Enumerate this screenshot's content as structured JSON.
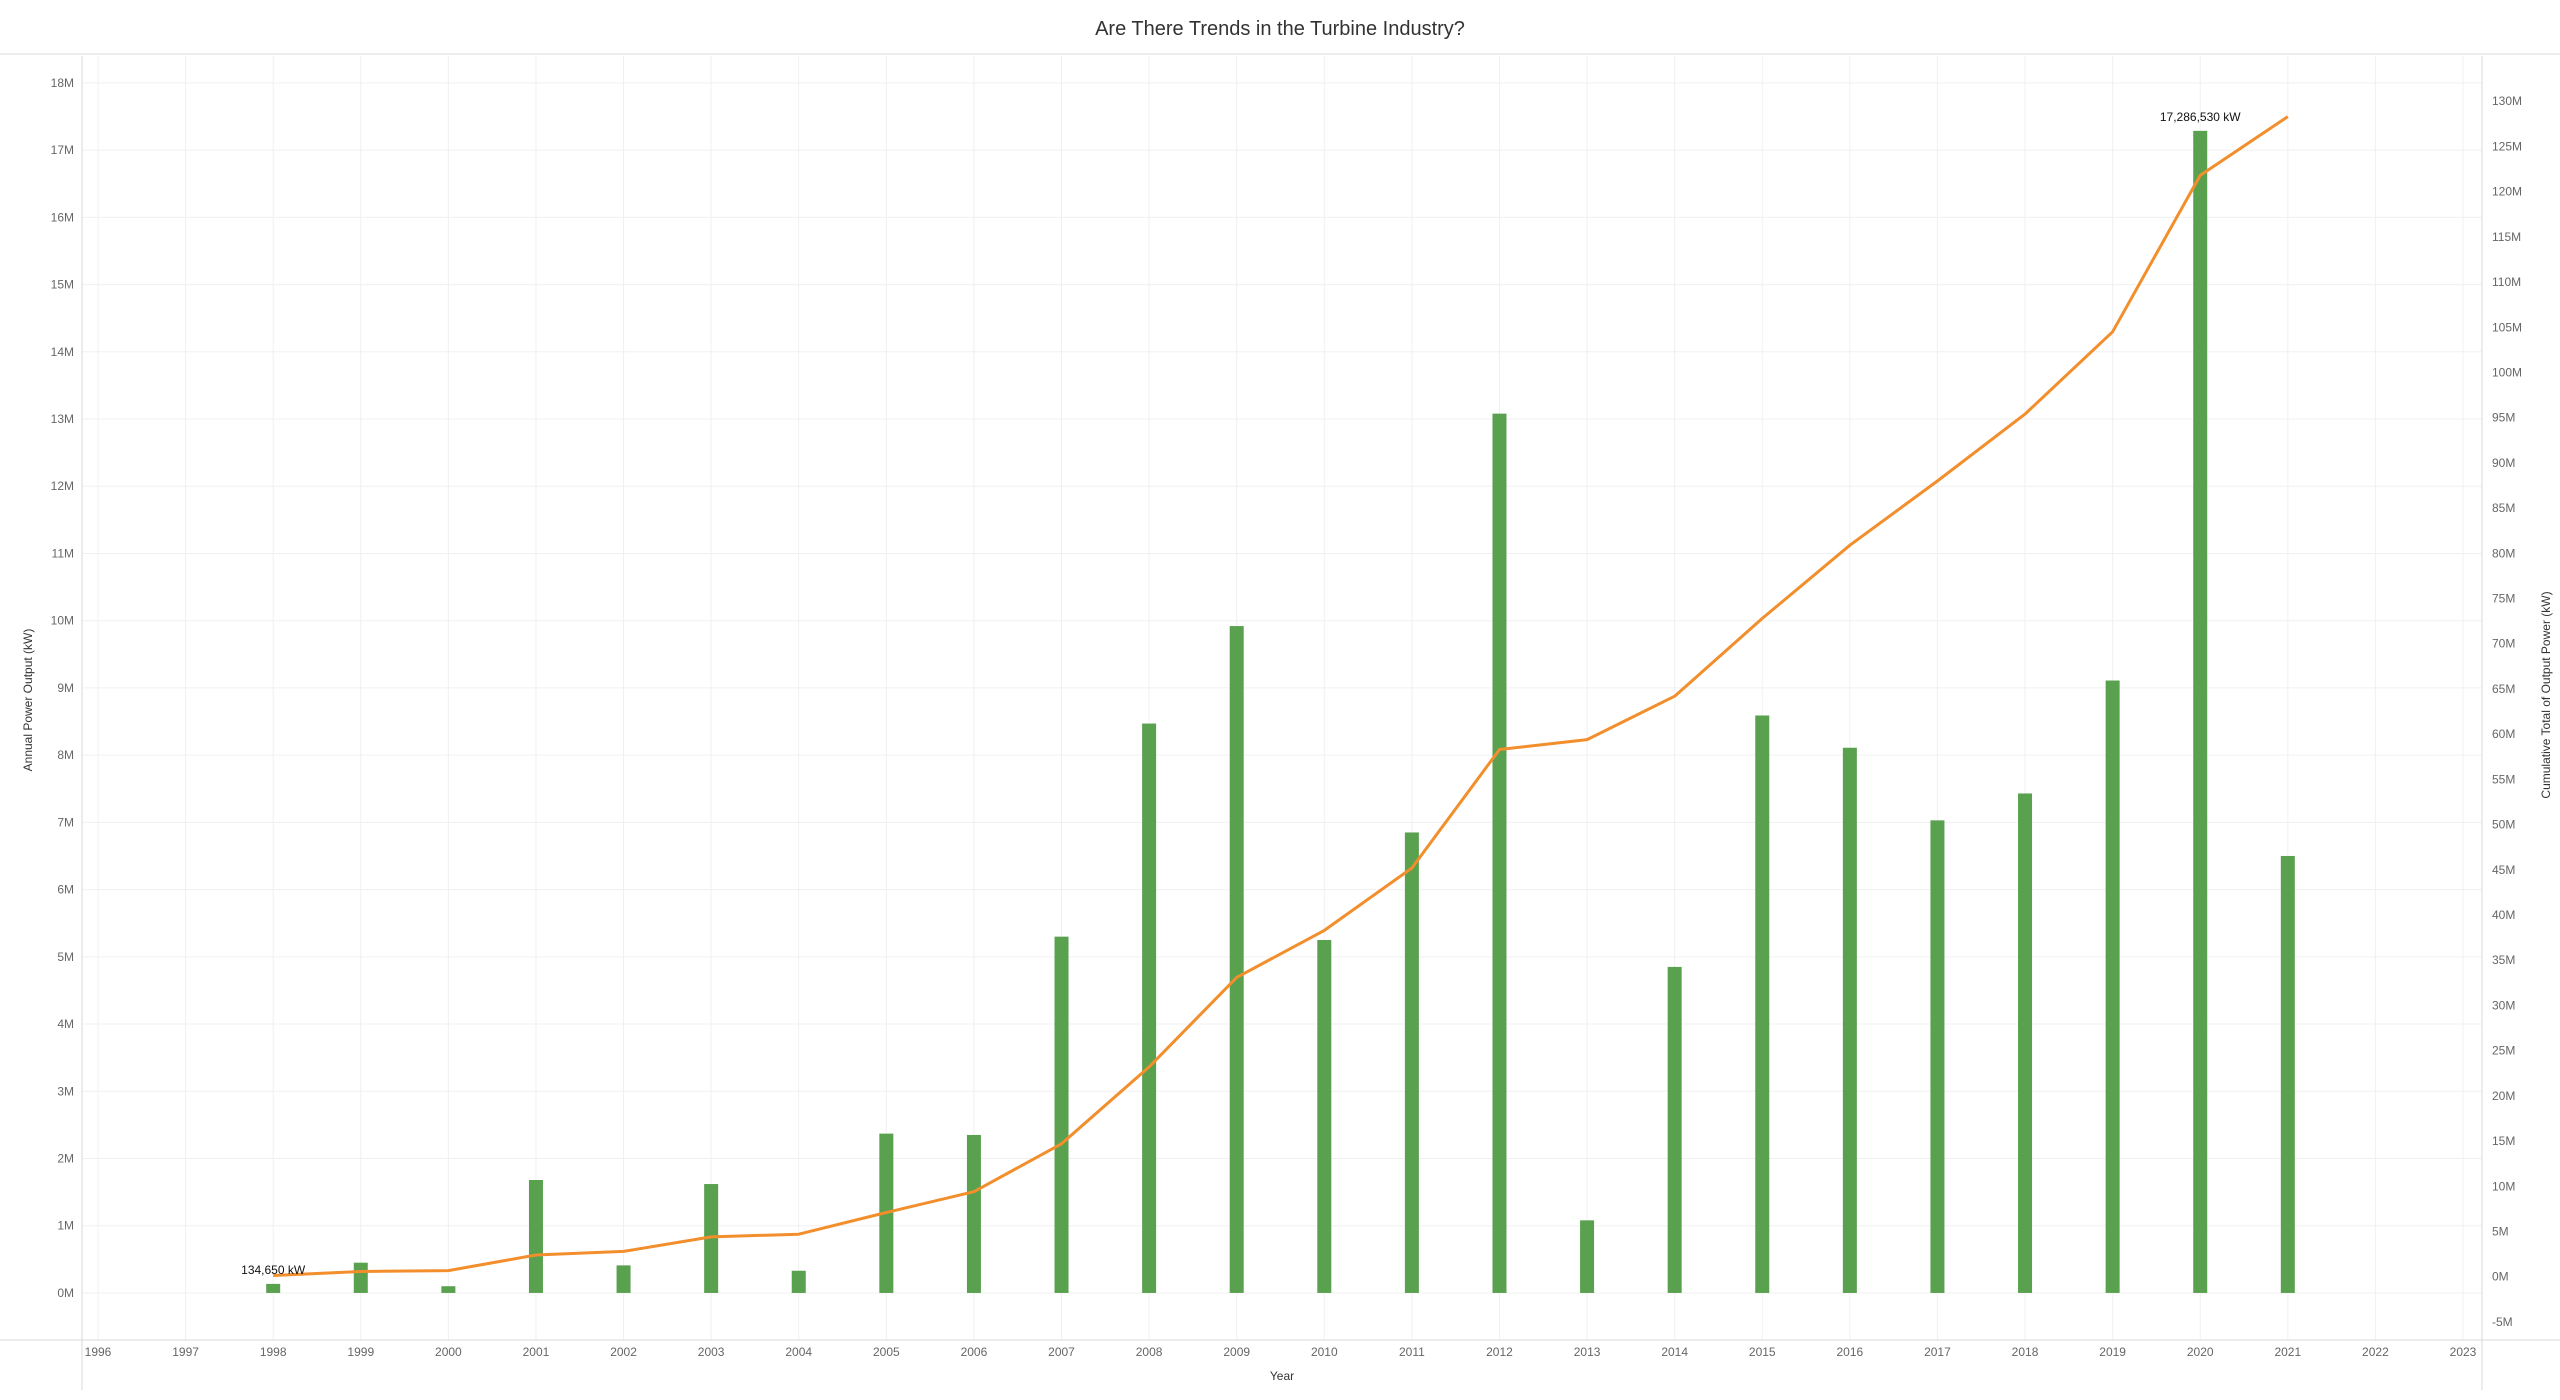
{
  "chart_data": {
    "type": "bar",
    "title": "Are There Trends in the Turbine Industry?",
    "xlabel": "Year",
    "ylabel_left": "Annual Power Output (kW)",
    "ylabel_right": "Cumulative Total of Output Power (kW)",
    "x_range": [
      1996,
      2023
    ],
    "x_ticks": [
      "1996",
      "1997",
      "1998",
      "1999",
      "2000",
      "2001",
      "2002",
      "2003",
      "2004",
      "2005",
      "2006",
      "2007",
      "2008",
      "2009",
      "2010",
      "2011",
      "2012",
      "2013",
      "2014",
      "2015",
      "2016",
      "2017",
      "2018",
      "2019",
      "2020",
      "2021",
      "2022",
      "2023"
    ],
    "ylim_left": [
      -700000,
      18400000
    ],
    "ylim_right": [
      -7000000,
      135000000
    ],
    "y_ticks_left": [
      "0M",
      "1M",
      "2M",
      "3M",
      "4M",
      "5M",
      "6M",
      "7M",
      "8M",
      "9M",
      "10M",
      "11M",
      "12M",
      "13M",
      "14M",
      "15M",
      "16M",
      "17M",
      "18M"
    ],
    "y_ticks_right": [
      "-5M",
      "0M",
      "5M",
      "10M",
      "15M",
      "20M",
      "25M",
      "30M",
      "35M",
      "40M",
      "45M",
      "50M",
      "55M",
      "60M",
      "65M",
      "70M",
      "75M",
      "80M",
      "85M",
      "90M",
      "95M",
      "100M",
      "105M",
      "110M",
      "115M",
      "120M",
      "125M",
      "130M"
    ],
    "grid": true,
    "legend": "none",
    "series": [
      {
        "type": "bar",
        "axis": "left",
        "color": "#59a14f",
        "x": [
          1998,
          1999,
          2000,
          2001,
          2002,
          2003,
          2004,
          2005,
          2006,
          2007,
          2008,
          2009,
          2010,
          2011,
          2012,
          2013,
          2014,
          2015,
          2016,
          2017,
          2018,
          2019,
          2020,
          2021
        ],
        "values": [
          134650,
          450000,
          100000,
          1680000,
          410000,
          1620000,
          330000,
          2370000,
          2350000,
          5300000,
          8470000,
          9920000,
          5250000,
          6850000,
          13080000,
          1080000,
          4850000,
          8590000,
          8110000,
          7030000,
          7430000,
          9110000,
          17286530,
          6500000
        ]
      },
      {
        "type": "line",
        "axis": "right",
        "color": "#f28e2b",
        "x": [
          1998,
          1999,
          2000,
          2001,
          2002,
          2003,
          2004,
          2005,
          2006,
          2007,
          2008,
          2009,
          2010,
          2011,
          2012,
          2013,
          2014,
          2015,
          2016,
          2017,
          2018,
          2019,
          2020,
          2021
        ],
        "values": [
          134650,
          580000,
          680000,
          2400000,
          2800000,
          4400000,
          4700000,
          7100000,
          9400000,
          14700000,
          23200000,
          33100000,
          38300000,
          45200000,
          58300000,
          59400000,
          64200000,
          72800000,
          80900000,
          88000000,
          95400000,
          104500000,
          121800000,
          128300000
        ]
      }
    ],
    "annotations": [
      {
        "x": 1998,
        "value": 134650,
        "label": "134,650 kW"
      },
      {
        "x": 2020,
        "value": 17286530,
        "label": "17,286,530 kW"
      }
    ]
  }
}
